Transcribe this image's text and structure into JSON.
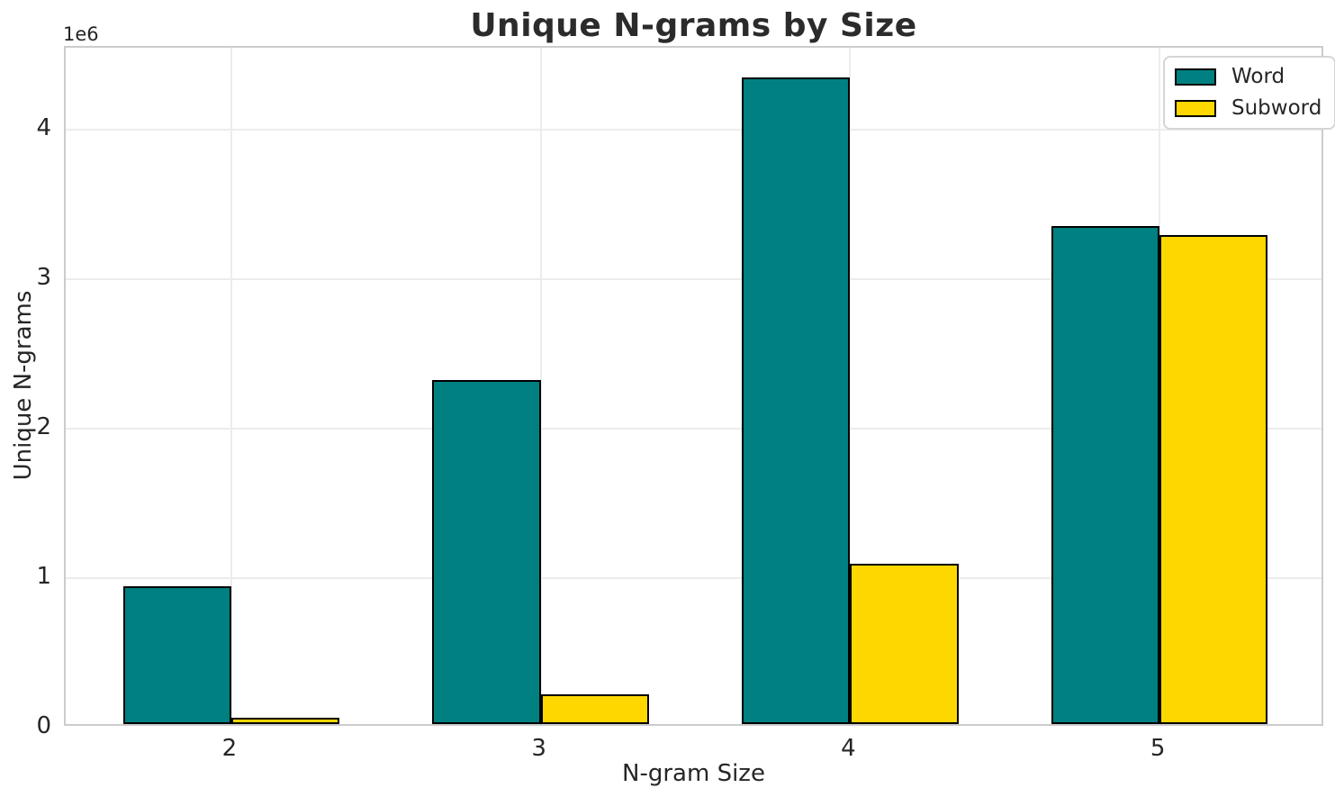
{
  "chart_data": {
    "type": "bar",
    "title": "Unique N-grams by Size",
    "xlabel": "N-gram Size",
    "ylabel": "Unique N-grams",
    "categories": [
      "2",
      "3",
      "4",
      "5"
    ],
    "series": [
      {
        "name": "Word",
        "color": "#008080",
        "values": [
          920000,
          2300000,
          4330000,
          3330000
        ]
      },
      {
        "name": "Subword",
        "color": "#FFD700",
        "values": [
          40000,
          200000,
          1070000,
          3270000
        ]
      }
    ],
    "bar_edge_color": "#000000",
    "bar_width_fraction": 0.35,
    "ylim": [
      0,
      4550000
    ],
    "yticks": [
      0,
      1000000,
      2000000,
      3000000,
      4000000
    ],
    "ytick_labels": [
      "0",
      "1",
      "2",
      "3",
      "4"
    ],
    "y_offset_label": "1e6",
    "grid": true,
    "legend_position": "upper right"
  }
}
